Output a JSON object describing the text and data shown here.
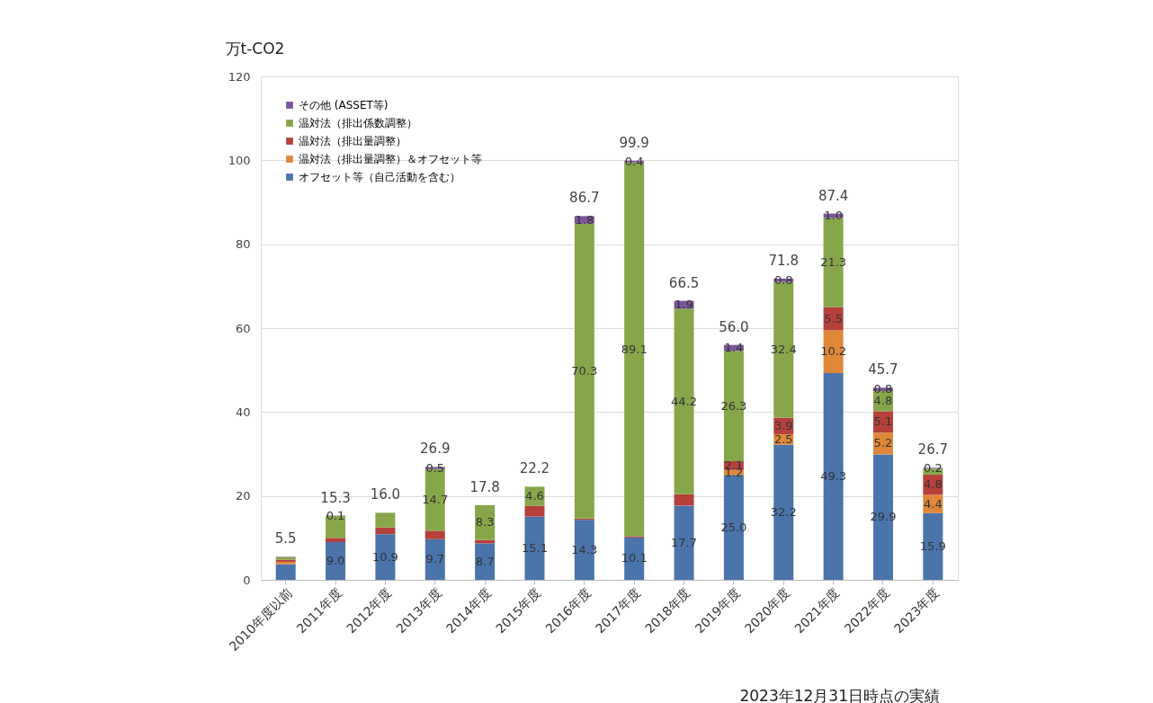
{
  "chart_data": {
    "type": "bar",
    "stacked": true,
    "ylabel": "万t-CO2",
    "categories": [
      "2010年度以前",
      "2011年度",
      "2012年度",
      "2013年度",
      "2014年度",
      "2015年度",
      "2016年度",
      "2017年度",
      "2018年度",
      "2019年度",
      "2020年度",
      "2021年度",
      "2022年度",
      "2023年度"
    ],
    "series": [
      {
        "name": "オフセット等（自己活動を含む）",
        "color": "#4a74aa",
        "values": [
          3.7,
          9.0,
          10.9,
          9.7,
          8.7,
          15.1,
          14.3,
          10.1,
          17.7,
          25.0,
          32.2,
          49.3,
          29.9,
          15.9
        ],
        "value_labels": [
          null,
          "9.0",
          "10.9",
          "9.7",
          "8.7",
          "15.1",
          "14.3",
          "10.1",
          "17.7",
          "25.0",
          "32.2",
          "49.3",
          "29.9",
          "15.9"
        ]
      },
      {
        "name": "温対法（排出量調整）＆オフセット等",
        "color": "#e0883a",
        "values": [
          0.6,
          0.0,
          0.0,
          0.0,
          0.0,
          0.0,
          0.0,
          0.0,
          0.0,
          1.2,
          2.5,
          10.2,
          5.2,
          4.4
        ],
        "value_labels": [
          null,
          null,
          null,
          null,
          null,
          null,
          null,
          null,
          null,
          "1.2",
          "2.5",
          "10.2",
          "5.2",
          "4.4"
        ]
      },
      {
        "name": "温対法（排出量調整）",
        "color": "#b5403c",
        "values": [
          0.5,
          1.0,
          1.6,
          2.0,
          0.8,
          2.5,
          0.3,
          0.3,
          2.7,
          2.1,
          3.9,
          5.5,
          5.1,
          4.8
        ],
        "value_labels": [
          null,
          null,
          null,
          null,
          null,
          null,
          null,
          null,
          null,
          "2.1",
          "3.9",
          "5.5",
          "5.1",
          "4.8"
        ]
      },
      {
        "name": "温対法（排出係数調整）",
        "color": "#87a64a",
        "values": [
          0.6,
          5.2,
          3.5,
          14.7,
          8.3,
          4.6,
          70.3,
          89.1,
          44.2,
          26.3,
          32.4,
          21.3,
          4.8,
          1.4
        ],
        "value_labels": [
          null,
          null,
          null,
          "14.7",
          "8.3",
          "4.6",
          "70.3",
          "89.1",
          "44.2",
          "26.3",
          "32.4",
          "21.3",
          "4.8",
          null
        ]
      },
      {
        "name": "その他 (ASSET等)",
        "color": "#7b559a",
        "values": [
          0.1,
          0.1,
          0.0,
          0.5,
          0.0,
          0.0,
          1.8,
          0.4,
          1.9,
          1.4,
          0.8,
          1.0,
          0.8,
          0.2
        ],
        "value_labels": [
          null,
          "0.1",
          null,
          "0.5",
          null,
          null,
          "1.8",
          "0.4",
          "1.9",
          "1.4",
          "0.8",
          "1.0",
          "0.8",
          "0.2"
        ]
      }
    ],
    "totals": [
      "5.5",
      "15.3",
      "16.0",
      "26.9",
      "17.8",
      "22.2",
      "86.7",
      "99.9",
      "66.5",
      "56.0",
      "71.8",
      "87.4",
      "45.7",
      "26.7"
    ],
    "ylim": [
      0,
      120
    ],
    "yticks": [
      0,
      20,
      40,
      60,
      80,
      100,
      120
    ],
    "grid": "y",
    "legend": "top left",
    "annotations": [
      "2023年12月31日時点の実績"
    ]
  }
}
